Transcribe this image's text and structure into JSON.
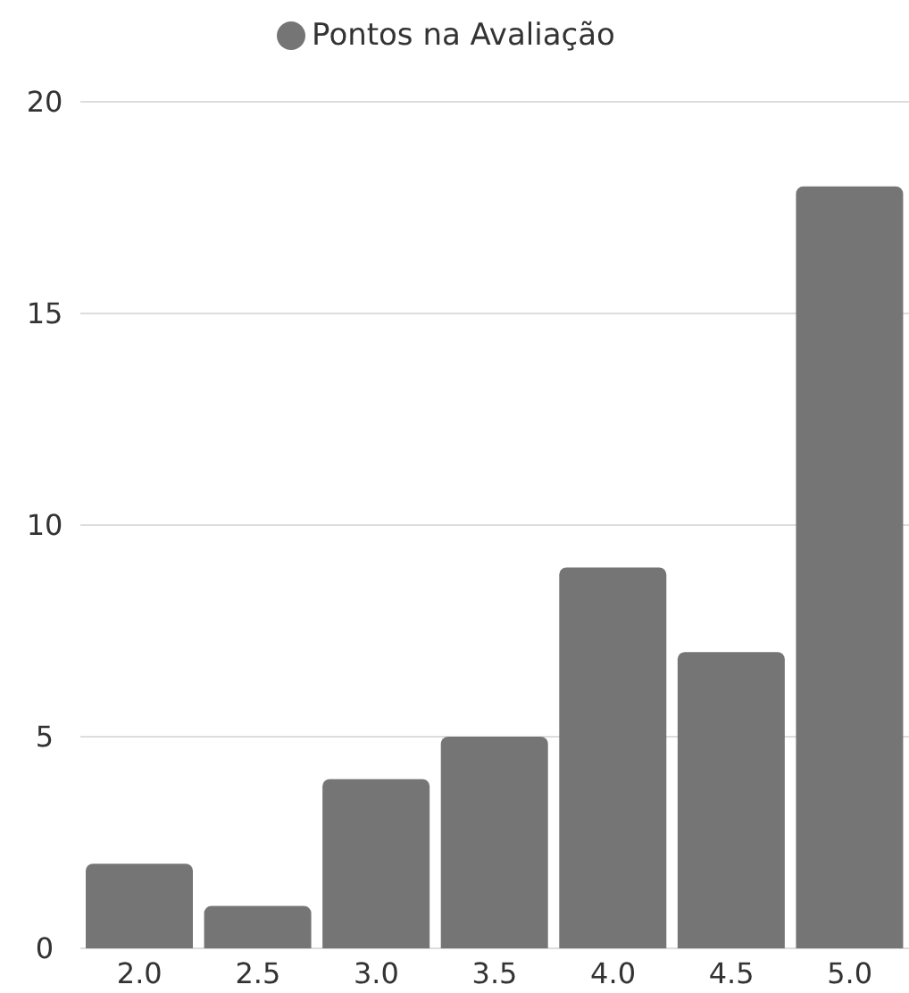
{
  "chart_data": {
    "type": "bar",
    "categories": [
      "2.0",
      "2.5",
      "3.0",
      "3.5",
      "4.0",
      "4.5",
      "5.0"
    ],
    "series": [
      {
        "name": "Pontos na Avaliação",
        "color": "#757575",
        "values": [
          2,
          1,
          4,
          5,
          9,
          7,
          18
        ]
      }
    ],
    "ylim": [
      0,
      20
    ],
    "yticks": [
      0,
      5,
      10,
      15,
      20
    ],
    "grid": "y",
    "legend": "top"
  }
}
